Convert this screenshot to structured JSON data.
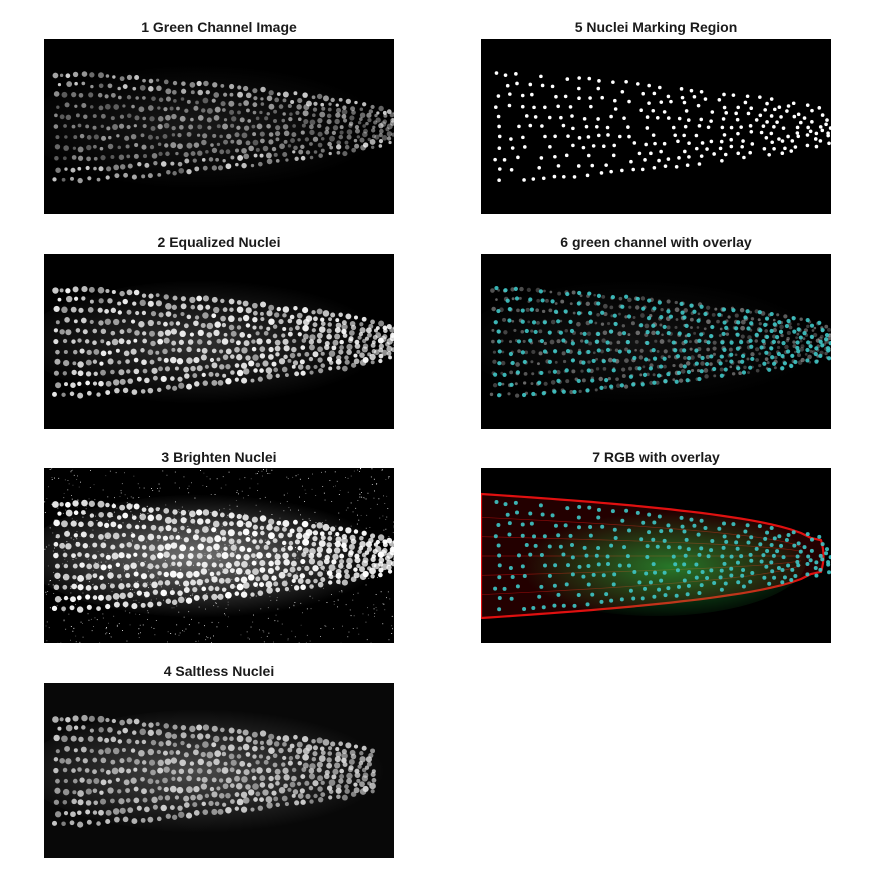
{
  "figure": {
    "panels": [
      {
        "id": "p1",
        "title": "1 Green Channel Image",
        "render": "green-channel"
      },
      {
        "id": "p2",
        "title": "2 Equalized Nuclei",
        "render": "equalized"
      },
      {
        "id": "p3",
        "title": "3 Brighten Nuclei",
        "render": "brighten"
      },
      {
        "id": "p4",
        "title": "4 Saltless Nuclei",
        "render": "saltless"
      },
      {
        "id": "p5",
        "title": "5 Nuclei Marking Region",
        "render": "binary-mask"
      },
      {
        "id": "p6",
        "title": "6 green channel with overlay",
        "render": "cyan-overlay"
      },
      {
        "id": "p7",
        "title": "7 RGB with overlay",
        "render": "rgb-overlay"
      }
    ],
    "colors": {
      "background": "#000000",
      "nuclei_gray": "#d9d9d9",
      "mask": "#ffffff",
      "overlay_cyan": "#3fc6c6",
      "membrane_red": "#e01010",
      "green_signal": "#2bd94a"
    }
  }
}
